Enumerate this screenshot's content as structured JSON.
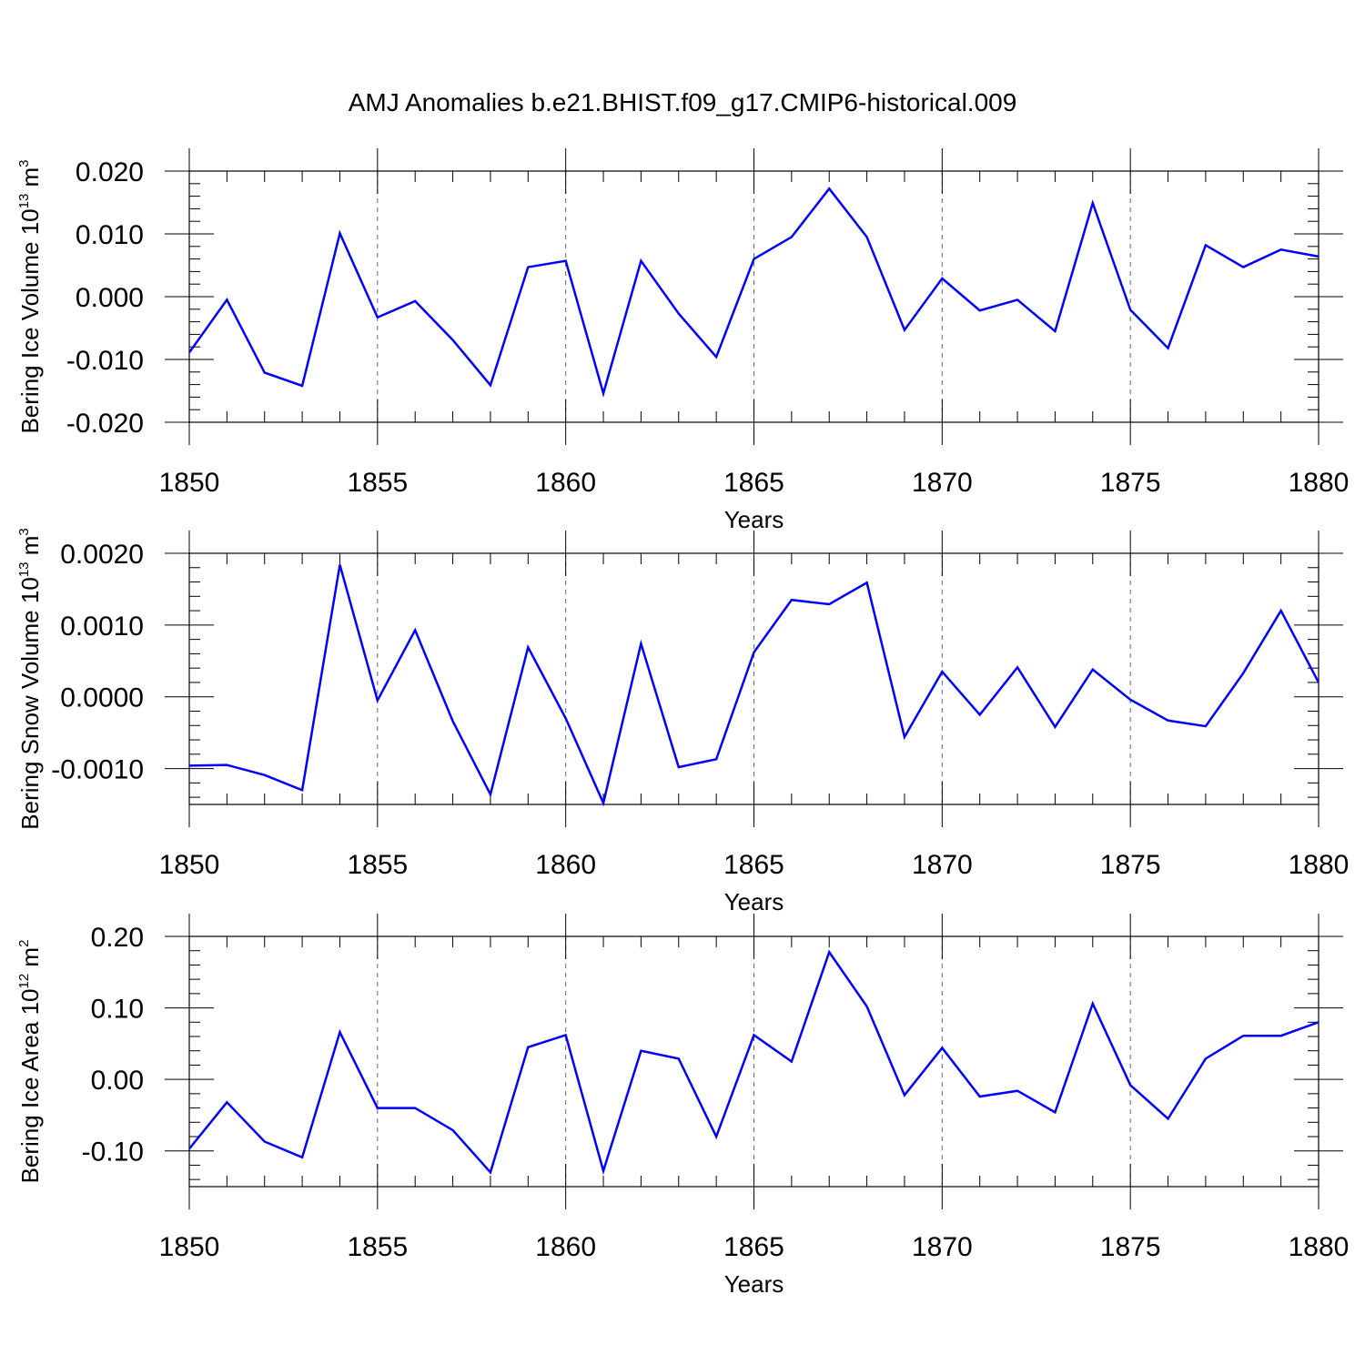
{
  "title": "AMJ Anomalies b.e21.BHIST.f09_g17.CMIP6-historical.009",
  "chart_data": [
    {
      "type": "line",
      "ylabel": {
        "text": "Bering Ice Volume 10",
        "sup": "13",
        "unit": " m",
        "unit_sup": "3"
      },
      "xlabel": "Years",
      "xlim": [
        1850,
        1880
      ],
      "ylim": [
        -0.02,
        0.02
      ],
      "xticks": [
        "1850",
        "1855",
        "1860",
        "1865",
        "1870",
        "1875",
        "1880"
      ],
      "yticks": [
        "-0.020",
        "-0.010",
        "0.000",
        "0.010",
        "0.020"
      ],
      "ytick_values": [
        -0.02,
        -0.01,
        0.0,
        0.01,
        0.02
      ],
      "color": "#0000ff",
      "x": [
        1850,
        1851,
        1852,
        1853,
        1854,
        1855,
        1856,
        1857,
        1858,
        1859,
        1860,
        1861,
        1862,
        1863,
        1864,
        1865,
        1866,
        1867,
        1868,
        1869,
        1870,
        1871,
        1872,
        1873,
        1874,
        1875,
        1876,
        1877,
        1878,
        1879,
        1880
      ],
      "values": [
        -0.0089,
        -0.0005,
        -0.0121,
        -0.0142,
        0.0101,
        -0.0033,
        -0.0007,
        -0.0069,
        -0.0141,
        0.0047,
        0.0057,
        -0.0154,
        0.0057,
        -0.0027,
        -0.0096,
        0.006,
        0.0095,
        0.0172,
        0.0095,
        -0.0053,
        0.0029,
        -0.0022,
        -0.0005,
        -0.0055,
        0.0149,
        -0.0021,
        -0.0082,
        0.0082,
        0.0047,
        0.0075,
        0.0064
      ]
    },
    {
      "type": "line",
      "ylabel": {
        "text": "Bering Snow Volume 10",
        "sup": "13",
        "unit": " m",
        "unit_sup": "3"
      },
      "xlabel": "Years",
      "xlim": [
        1850,
        1880
      ],
      "ylim": [
        -0.0015,
        0.002
      ],
      "xticks": [
        "1850",
        "1855",
        "1860",
        "1865",
        "1870",
        "1875",
        "1880"
      ],
      "yticks": [
        "-0.0010",
        "0.0000",
        "0.0010",
        "0.0020"
      ],
      "ytick_values": [
        -0.001,
        0.0,
        0.001,
        0.002
      ],
      "color": "#0000ff",
      "x": [
        1850,
        1851,
        1852,
        1853,
        1854,
        1855,
        1856,
        1857,
        1858,
        1859,
        1860,
        1861,
        1862,
        1863,
        1864,
        1865,
        1866,
        1867,
        1868,
        1869,
        1870,
        1871,
        1872,
        1873,
        1874,
        1875,
        1876,
        1877,
        1878,
        1879,
        1880
      ],
      "values": [
        -0.00096,
        -0.00095,
        -0.00109,
        -0.0013,
        0.00184,
        -5e-05,
        0.00093,
        -0.00034,
        -0.00136,
        0.00069,
        -0.0003,
        -0.00148,
        0.00074,
        -0.00098,
        -0.00087,
        0.00062,
        0.00135,
        0.00129,
        0.00159,
        -0.00056,
        0.00035,
        -0.00025,
        0.00041,
        -0.00042,
        0.00038,
        -4e-05,
        -0.00033,
        -0.00041,
        0.00033,
        0.0012,
        0.0002
      ]
    },
    {
      "type": "line",
      "ylabel": {
        "text": "Bering Ice Area 10",
        "sup": "12",
        "unit": " m",
        "unit_sup": "2"
      },
      "xlabel": "Years",
      "xlim": [
        1850,
        1880
      ],
      "ylim": [
        -0.15,
        0.2
      ],
      "xticks": [
        "1850",
        "1855",
        "1860",
        "1865",
        "1870",
        "1875",
        "1880"
      ],
      "yticks": [
        "-0.10",
        "0.00",
        "0.10",
        "0.20"
      ],
      "ytick_values": [
        -0.1,
        0.0,
        0.1,
        0.2
      ],
      "color": "#0000ff",
      "x": [
        1850,
        1851,
        1852,
        1853,
        1854,
        1855,
        1856,
        1857,
        1858,
        1859,
        1860,
        1861,
        1862,
        1863,
        1864,
        1865,
        1866,
        1867,
        1868,
        1869,
        1870,
        1871,
        1872,
        1873,
        1874,
        1875,
        1876,
        1877,
        1878,
        1879,
        1880
      ],
      "values": [
        -0.097,
        -0.032,
        -0.087,
        -0.109,
        0.066,
        -0.04,
        -0.04,
        -0.071,
        -0.13,
        0.045,
        0.062,
        -0.128,
        0.04,
        0.029,
        -0.08,
        0.062,
        0.025,
        0.178,
        0.102,
        -0.022,
        0.044,
        -0.024,
        -0.016,
        -0.046,
        0.106,
        -0.008,
        -0.055,
        0.029,
        0.061,
        0.061,
        0.08
      ]
    }
  ]
}
